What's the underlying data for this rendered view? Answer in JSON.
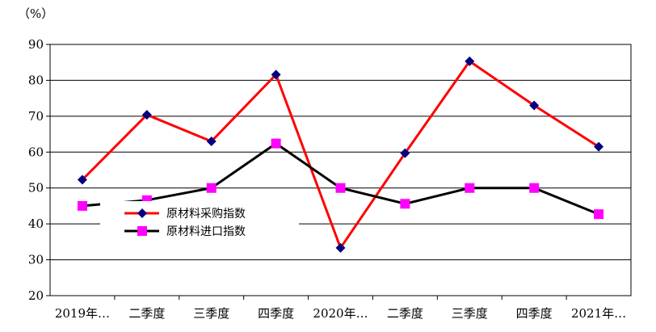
{
  "chart_data": {
    "type": "line",
    "unit_label": "（%）",
    "categories": [
      "2019年…",
      "二季度",
      "三季度",
      "四季度",
      "2020年…",
      "二季度",
      "三季度",
      "四季度",
      "2021年…"
    ],
    "ylim": [
      20,
      90
    ],
    "y_ticks": [
      20,
      30,
      40,
      50,
      60,
      70,
      80,
      90
    ],
    "grid": true,
    "legend_position": "center-left",
    "series": [
      {
        "name": "原材料采购指数",
        "color": "#ff0000",
        "marker": "diamond",
        "marker_color": "#000080",
        "values": [
          52.3,
          70.4,
          63.0,
          81.6,
          33.3,
          59.7,
          85.3,
          73.0,
          61.5
        ]
      },
      {
        "name": "原材料进口指数",
        "color": "#000000",
        "marker": "square",
        "marker_color": "#ff00ff",
        "values": [
          45.0,
          46.6,
          50.0,
          62.4,
          50.0,
          45.6,
          50.0,
          50.0,
          42.7
        ]
      }
    ]
  }
}
